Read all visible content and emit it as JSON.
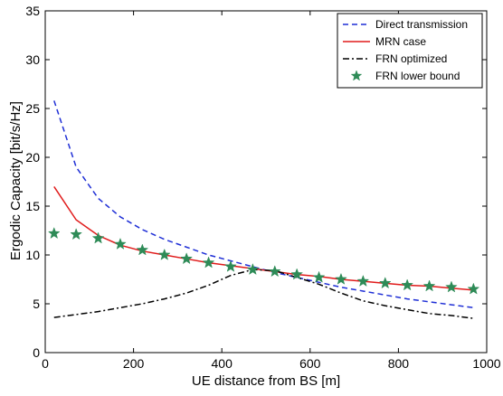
{
  "chart_data": {
    "type": "line",
    "xlabel": "UE distance from BS [m]",
    "ylabel": "Ergodic Capacity  [bit/s/Hz]",
    "xlim": [
      0,
      1000
    ],
    "ylim": [
      0,
      35
    ],
    "xticks": [
      0,
      200,
      400,
      600,
      800,
      1000
    ],
    "yticks": [
      0,
      5,
      10,
      15,
      20,
      25,
      30,
      35
    ],
    "x": [
      20,
      70,
      120,
      170,
      220,
      270,
      320,
      370,
      420,
      470,
      520,
      570,
      620,
      670,
      720,
      770,
      820,
      870,
      920,
      970
    ],
    "grid": false,
    "legend_position": "top-right",
    "series": [
      {
        "name": "Direct transmission",
        "style": "dashed",
        "color": "#1f2fd6",
        "values": [
          25.8,
          19.0,
          15.8,
          13.9,
          12.6,
          11.6,
          10.8,
          10.0,
          9.4,
          8.8,
          8.2,
          7.7,
          7.2,
          6.7,
          6.3,
          5.9,
          5.5,
          5.2,
          4.9,
          4.6
        ]
      },
      {
        "name": "MRN case",
        "style": "solid",
        "color": "#e01b1b",
        "values": [
          17.0,
          13.6,
          12.0,
          11.0,
          10.4,
          10.0,
          9.6,
          9.2,
          8.9,
          8.6,
          8.3,
          8.0,
          7.8,
          7.5,
          7.3,
          7.1,
          6.9,
          6.8,
          6.6,
          6.4
        ]
      },
      {
        "name": "FRN optimized",
        "style": "dashdot",
        "color": "#000000",
        "values": [
          3.6,
          3.9,
          4.2,
          4.6,
          5.0,
          5.5,
          6.1,
          6.9,
          7.9,
          8.5,
          8.4,
          7.7,
          7.0,
          6.1,
          5.3,
          4.8,
          4.4,
          4.0,
          3.8,
          3.5
        ]
      },
      {
        "name": "FRN lower bound",
        "style": "markers",
        "marker": "star",
        "color": "#2e8b57",
        "values": [
          12.2,
          12.1,
          11.7,
          11.1,
          10.5,
          10.0,
          9.6,
          9.2,
          8.8,
          8.5,
          8.3,
          8.0,
          7.7,
          7.5,
          7.3,
          7.1,
          6.9,
          6.8,
          6.7,
          6.5
        ]
      }
    ]
  }
}
